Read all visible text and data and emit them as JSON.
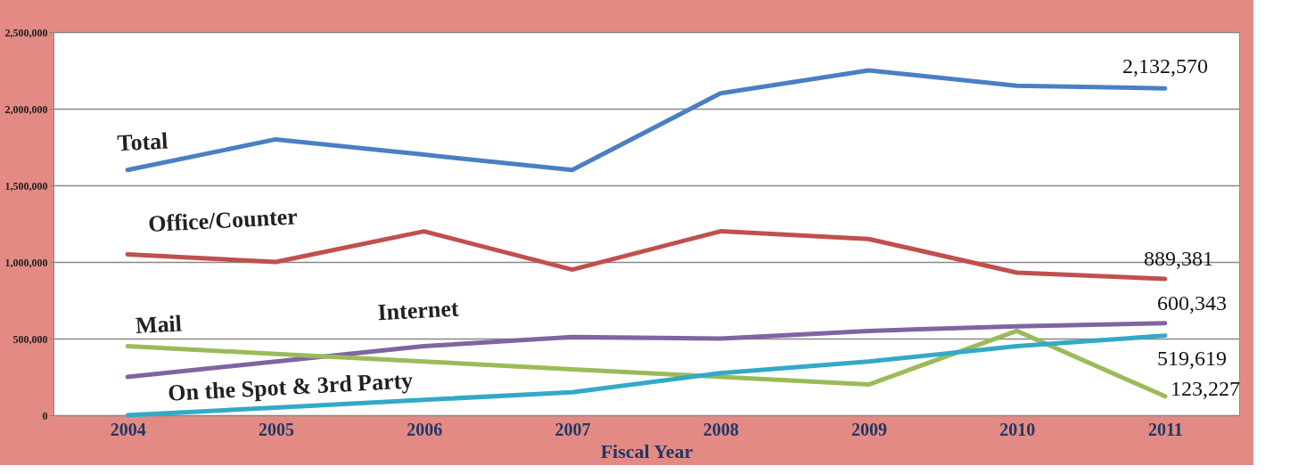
{
  "chart_data": {
    "type": "line",
    "xlabel": "Fiscal Year",
    "categories": [
      "2004",
      "2005",
      "2006",
      "2007",
      "2008",
      "2009",
      "2010",
      "2011"
    ],
    "ylim": [
      0,
      2500000
    ],
    "yticks": [
      {
        "value": 0,
        "label": "0"
      },
      {
        "value": 500000,
        "label": "500,000"
      },
      {
        "value": 1000000,
        "label": "1,000,000"
      },
      {
        "value": 1500000,
        "label": "1,500,000"
      },
      {
        "value": 2000000,
        "label": "2,000,000"
      },
      {
        "value": 2500000,
        "label": "2,500,000"
      }
    ],
    "grid": "y",
    "legend": false,
    "marker": "none",
    "line_style": "solid",
    "series": [
      {
        "name": "Total",
        "color": "#4a7fc4",
        "values": [
          1600000,
          1800000,
          1700000,
          1600000,
          2100000,
          2250000,
          2150000,
          2132570
        ],
        "value_labels": [
          null,
          null,
          null,
          null,
          null,
          null,
          null,
          "2,132,570"
        ]
      },
      {
        "name": "Office/Counter",
        "color": "#c0504d",
        "values": [
          1050000,
          1000000,
          1200000,
          950000,
          1200000,
          1150000,
          930000,
          889381
        ],
        "value_labels": [
          null,
          null,
          null,
          null,
          null,
          null,
          null,
          "889,381"
        ]
      },
      {
        "name": "Internet",
        "color": "#8064a2",
        "values": [
          250000,
          350000,
          450000,
          510000,
          500000,
          550000,
          580000,
          600343
        ],
        "value_labels": [
          null,
          null,
          null,
          null,
          null,
          null,
          null,
          "600,343"
        ]
      },
      {
        "name": "Mail",
        "color": "#9bbb59",
        "values": [
          450000,
          400000,
          350000,
          300000,
          250000,
          200000,
          550000,
          123227
        ],
        "value_labels": [
          null,
          null,
          null,
          null,
          null,
          null,
          null,
          "123,227"
        ]
      },
      {
        "name": "On the Spot & 3rd Party",
        "color": "#33a9c8",
        "values": [
          0,
          50000,
          100000,
          150000,
          275000,
          350000,
          450000,
          519619
        ],
        "value_labels": [
          null,
          null,
          null,
          null,
          null,
          null,
          null,
          "519,619"
        ]
      }
    ]
  }
}
